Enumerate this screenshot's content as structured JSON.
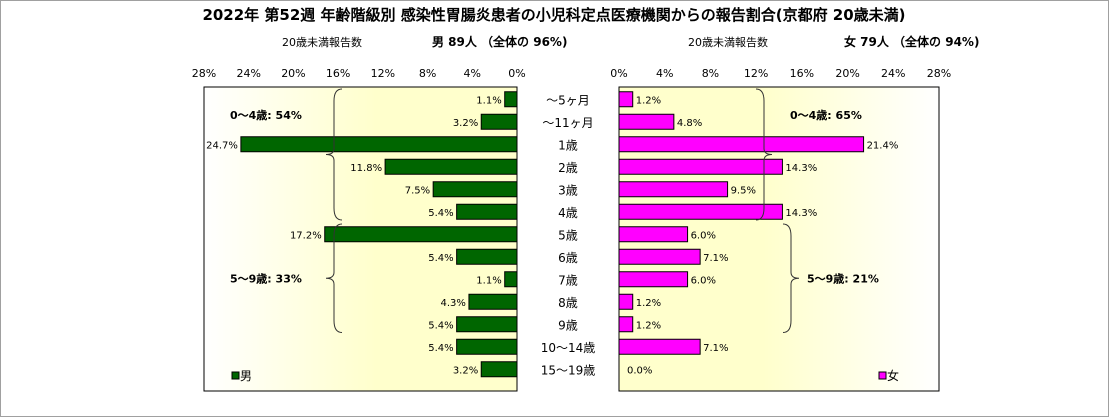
{
  "title": "2022年 第52週 年齢階級別 感染性胃腸炎患者の小児科定点医療機関からの報告割合(京都府 20歳未満)",
  "male_header": {
    "count_label": "20歳未満報告数",
    "summary": "男  89人  （全体の  96%)"
  },
  "female_header": {
    "count_label": "20歳未満報告数",
    "summary": "女  79人  （全体の  94%)"
  },
  "colors": {
    "male": "#006600",
    "female": "#ff00ff",
    "plot_fill": "#ffffcc",
    "plot_fill_edge": "#ffffff",
    "border": "#000000"
  },
  "chart_data": [
    {
      "type": "bar",
      "orientation": "horizontal",
      "direction": "right-to-left",
      "categories": [
        "～5ヶ月",
        "～11ヶ月",
        "1歳",
        "2歳",
        "3歳",
        "4歳",
        "5歳",
        "6歳",
        "7歳",
        "8歳",
        "9歳",
        "10～14歳",
        "15～19歳"
      ],
      "series": [
        {
          "name": "男",
          "values": [
            1.1,
            3.2,
            24.7,
            11.8,
            7.5,
            5.4,
            17.2,
            5.4,
            1.1,
            4.3,
            5.4,
            5.4,
            3.2
          ]
        }
      ],
      "value_labels": [
        "1.1%",
        "3.2%",
        "24.7%",
        "11.8%",
        "7.5%",
        "5.4%",
        "17.2%",
        "5.4%",
        "1.1%",
        "4.3%",
        "5.4%",
        "5.4%",
        "3.2%"
      ],
      "xlim": [
        0,
        28
      ],
      "ticks": [
        "28%",
        "24%",
        "20%",
        "16%",
        "12%",
        "8%",
        "4%",
        "0%"
      ],
      "tick_values": [
        28,
        24,
        20,
        16,
        12,
        8,
        4,
        0
      ],
      "annotations": [
        {
          "text": "0～4歳: 54%",
          "from": 0,
          "to": 5
        },
        {
          "text": "5～9歳: 33%",
          "from": 6,
          "to": 10
        }
      ],
      "legend": {
        "label": "男",
        "position": "bottom-left"
      }
    },
    {
      "type": "bar",
      "orientation": "horizontal",
      "direction": "left-to-right",
      "categories": [
        "～5ヶ月",
        "～11ヶ月",
        "1歳",
        "2歳",
        "3歳",
        "4歳",
        "5歳",
        "6歳",
        "7歳",
        "8歳",
        "9歳",
        "10～14歳",
        "15～19歳"
      ],
      "series": [
        {
          "name": "女",
          "values": [
            1.2,
            4.8,
            21.4,
            14.3,
            9.5,
            14.3,
            6.0,
            7.1,
            6.0,
            1.2,
            1.2,
            7.1,
            0.0
          ]
        }
      ],
      "value_labels": [
        "1.2%",
        "4.8%",
        "21.4%",
        "14.3%",
        "9.5%",
        "14.3%",
        "6.0%",
        "7.1%",
        "6.0%",
        "1.2%",
        "1.2%",
        "7.1%",
        "0.0%"
      ],
      "xlim": [
        0,
        28
      ],
      "ticks": [
        "0%",
        "4%",
        "8%",
        "12%",
        "16%",
        "20%",
        "24%",
        "28%"
      ],
      "tick_values": [
        0,
        4,
        8,
        12,
        16,
        20,
        24,
        28
      ],
      "annotations": [
        {
          "text": "0～4歳: 65%",
          "from": 0,
          "to": 5
        },
        {
          "text": "5～9歳: 21%",
          "from": 6,
          "to": 10
        }
      ],
      "legend": {
        "label": "女",
        "position": "bottom-right"
      }
    }
  ]
}
